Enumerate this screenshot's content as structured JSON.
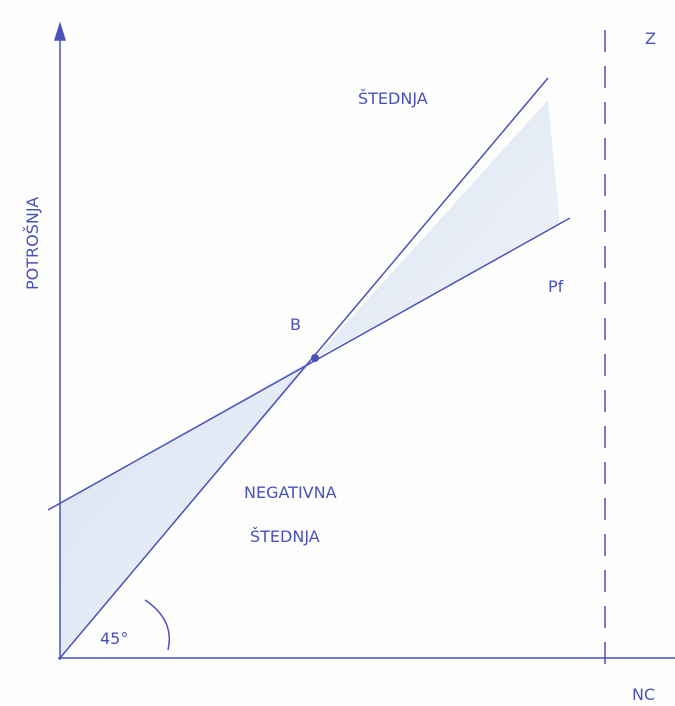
{
  "axes": {
    "y_label": "POTROŠNJA",
    "x_label": "NC"
  },
  "labels": {
    "savings": "ŠTEDNJA",
    "consumption_function": "Pf",
    "point": "B",
    "negative_savings_1": "NEGATIVNA",
    "negative_savings_2": "ŠTEDNJA",
    "angle": "45°",
    "z": "Z"
  }
}
